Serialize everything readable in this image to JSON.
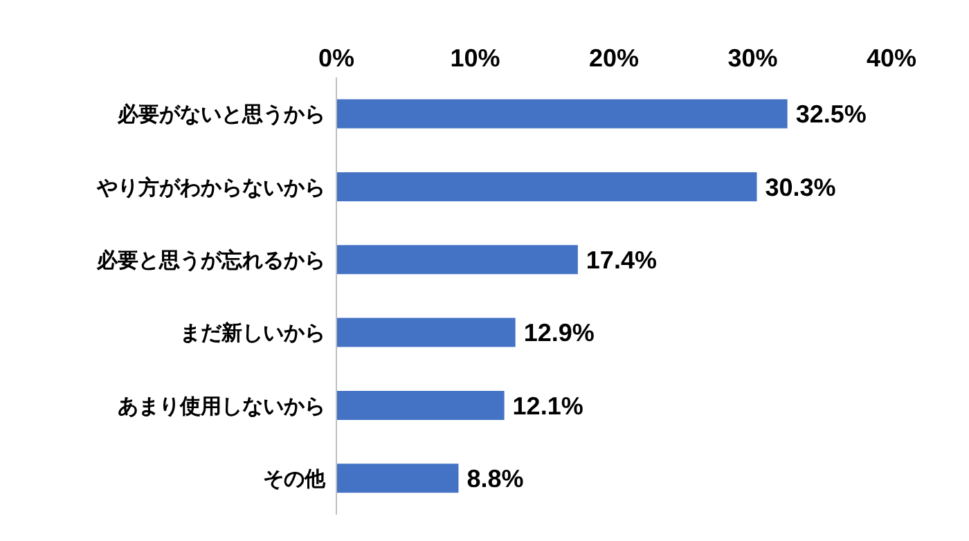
{
  "chart_data": {
    "type": "bar",
    "orientation": "horizontal",
    "categories": [
      "必要がないと思うから",
      "やり方がわからないから",
      "必要と思うが忘れるから",
      "まだ新しいから",
      "あまり使用しないから",
      "その他"
    ],
    "values": [
      32.5,
      30.3,
      17.4,
      12.9,
      12.1,
      8.8
    ],
    "value_labels": [
      "32.5%",
      "30.3%",
      "17.4%",
      "12.9%",
      "12.1%",
      "8.8%"
    ],
    "color": "#4472c4",
    "xlim": [
      0,
      40
    ],
    "xticks": [
      {
        "value": 0,
        "label": "0%"
      },
      {
        "value": 10,
        "label": "10%"
      },
      {
        "value": 20,
        "label": "20%"
      },
      {
        "value": 30,
        "label": "30%"
      },
      {
        "value": 40,
        "label": "40%"
      }
    ]
  }
}
